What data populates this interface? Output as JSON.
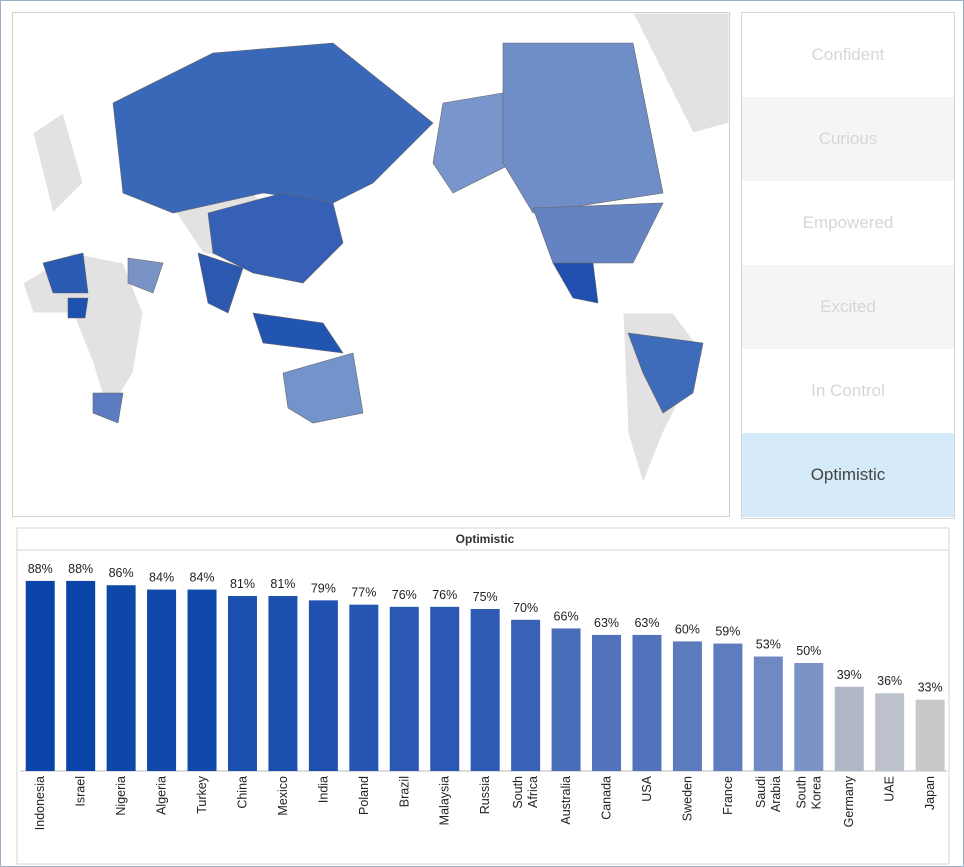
{
  "filters": [
    "Confident",
    "Curious",
    "Empowered",
    "Excited",
    "In Control",
    "Optimistic"
  ],
  "chart_data": {
    "type": "bar",
    "title": "Optimistic",
    "categories": [
      "Indonesia",
      "Israel",
      "Nigeria",
      "Algeria",
      "Turkey",
      "China",
      "Mexico",
      "India",
      "Poland",
      "Brazil",
      "Malaysia",
      "Russia",
      "South Africa",
      "Australia",
      "Canada",
      "USA",
      "Sweden",
      "France",
      "Saudi Arabia",
      "South Korea",
      "Germany",
      "UAE",
      "Japan"
    ],
    "values": [
      88,
      88,
      86,
      84,
      84,
      81,
      81,
      79,
      77,
      76,
      76,
      75,
      70,
      66,
      63,
      63,
      60,
      59,
      53,
      50,
      39,
      36,
      33
    ],
    "value_labels": [
      "88%",
      "88%",
      "86%",
      "84%",
      "84%",
      "81%",
      "81%",
      "79%",
      "77%",
      "76%",
      "76%",
      "75%",
      "70%",
      "66%",
      "63%",
      "63%",
      "60%",
      "59%",
      "53%",
      "50%",
      "39%",
      "36%",
      "33%"
    ],
    "colors": [
      "#0b44a8",
      "#0b44a8",
      "#0d47a8",
      "#1149aa",
      "#1149aa",
      "#1a4fae",
      "#1a4fae",
      "#2050b0",
      "#2655b2",
      "#2a58b3",
      "#2a58b3",
      "#2e5ab3",
      "#3a62b6",
      "#4a6db9",
      "#5073bb",
      "#5073bb",
      "#5b7bbe",
      "#5e7dbf",
      "#7089c2",
      "#7c93c6",
      "#b0b8c8",
      "#bcc1cc",
      "#c8c8ca"
    ]
  }
}
